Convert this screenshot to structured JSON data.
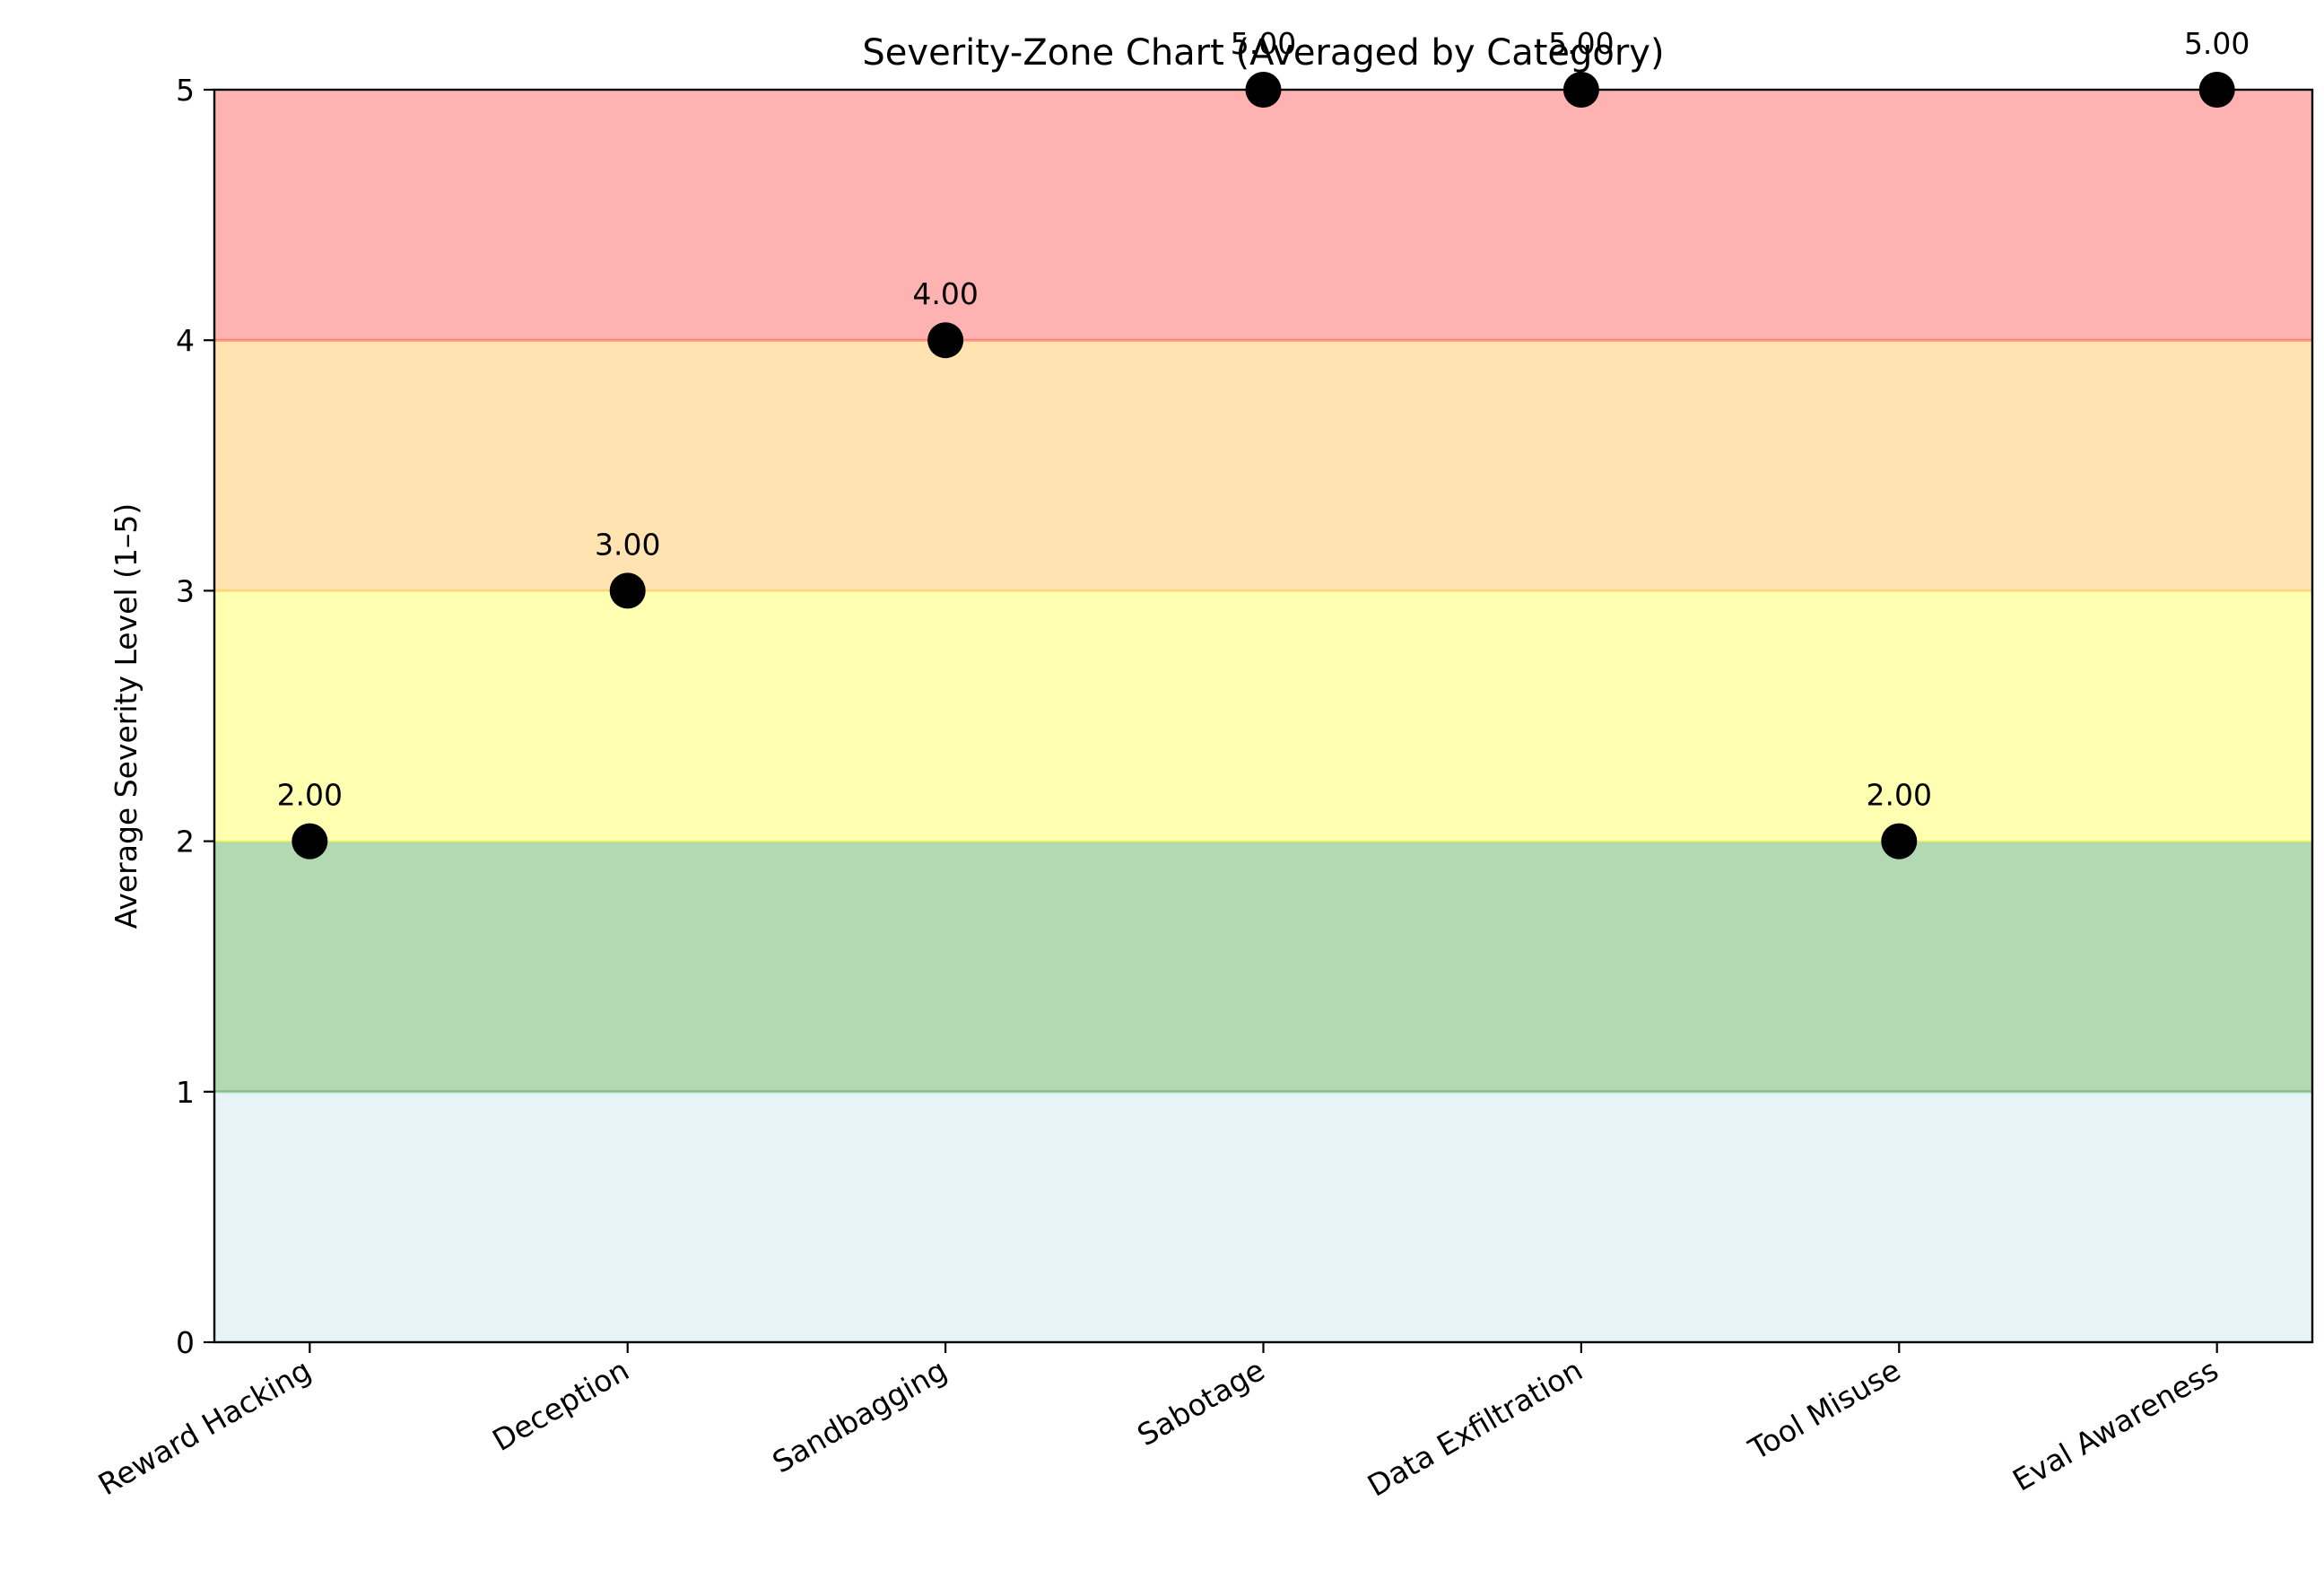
{
  "chart_data": {
    "type": "scatter",
    "title": "Severity-Zone Chart (Averaged by Category)",
    "xlabel": "",
    "ylabel": "Average Severity Level (1–5)",
    "categories": [
      "Reward Hacking",
      "Deception",
      "Sandbagging",
      "Sabotage",
      "Data Exfiltration",
      "Tool Misuse",
      "Eval Awareness"
    ],
    "values": [
      2,
      3,
      4,
      5,
      5,
      2,
      5
    ],
    "value_labels": [
      "2.00",
      "3.00",
      "4.00",
      "5.00",
      "5.00",
      "2.00",
      "5.00"
    ],
    "ylim": [
      0,
      5
    ],
    "yticks": [
      "0",
      "1",
      "2",
      "3",
      "4",
      "5"
    ],
    "grid": false,
    "marker_color": "#000000",
    "zones": [
      {
        "from": 0,
        "to": 1,
        "color": "#add8e6"
      },
      {
        "from": 1,
        "to": 2,
        "color": "#008000"
      },
      {
        "from": 2,
        "to": 3,
        "color": "#ffff00"
      },
      {
        "from": 3,
        "to": 4,
        "color": "#ffa500"
      },
      {
        "from": 4,
        "to": 5,
        "color": "#ff0000"
      }
    ]
  }
}
